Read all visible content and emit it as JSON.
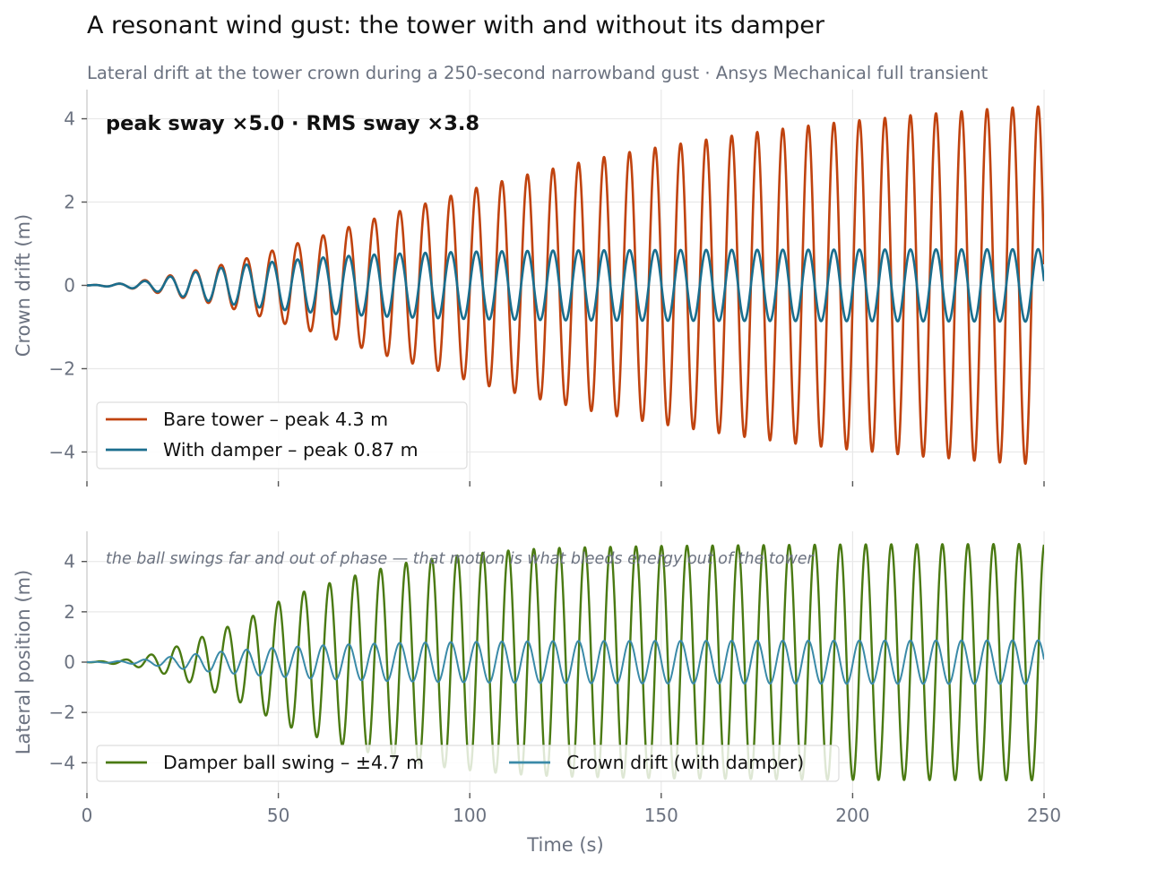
{
  "title": "A resonant wind gust: the tower with and without its damper",
  "subtitle": "Lateral drift at the tower crown during a 250-second narrowband gust  ·  Ansys Mechanical full transient",
  "chart_data": [
    {
      "type": "line",
      "ylabel": "Crown drift  (m)",
      "xlim": [
        0,
        250
      ],
      "ylim": [
        -4.7,
        4.7
      ],
      "x_ticks": [
        0,
        50,
        100,
        150,
        200,
        250
      ],
      "y_ticks": [
        -4,
        -2,
        0,
        2,
        4
      ],
      "grid": true,
      "legend_position": "lower-left",
      "annotation": "peak sway  ×5.0   ·   RMS sway  ×3.8",
      "oscillation_period_s": 6.67,
      "series": [
        {
          "name": "Bare tower  –  peak 4.3 m",
          "color": "#c0430f",
          "envelope": {
            "t": [
              0,
              10,
              16.7,
              25,
              33.3,
              41.7,
              50,
              58.3,
              66.7,
              75,
              83.3,
              91.7,
              100,
              108.3,
              116.7,
              125,
              133.3,
              141.7,
              150,
              158.3,
              166.7,
              175,
              183.3,
              191.7,
              200,
              208.3,
              216.7,
              225,
              233.3,
              241.7,
              250
            ],
            "amp": [
              0,
              0.05,
              0.15,
              0.3,
              0.45,
              0.65,
              0.88,
              1.1,
              1.35,
              1.6,
              1.83,
              2.05,
              2.3,
              2.5,
              2.7,
              2.87,
              3.05,
              3.2,
              3.33,
              3.45,
              3.57,
              3.68,
              3.78,
              3.87,
              3.95,
              4.02,
              4.1,
              4.15,
              4.22,
              4.27,
              4.3
            ]
          }
        },
        {
          "name": "With damper  –  peak 0.87 m",
          "color": "#1a6e8e",
          "envelope": {
            "t": [
              0,
              10,
              16.7,
              25,
              33.3,
              41.7,
              50,
              58.3,
              66.7,
              75,
              83.3,
              91.7,
              100,
              108.3,
              116.7,
              125,
              150,
              200,
              250
            ],
            "amp": [
              0,
              0.05,
              0.12,
              0.27,
              0.4,
              0.5,
              0.58,
              0.65,
              0.7,
              0.74,
              0.77,
              0.79,
              0.81,
              0.82,
              0.83,
              0.84,
              0.85,
              0.86,
              0.87
            ]
          }
        }
      ]
    },
    {
      "type": "line",
      "xlabel": "Time  (s)",
      "ylabel": "Lateral position  (m)",
      "xlim": [
        0,
        250
      ],
      "ylim": [
        -5.2,
        5.2
      ],
      "x_ticks": [
        0,
        50,
        100,
        150,
        200,
        250
      ],
      "y_ticks": [
        -4,
        -2,
        0,
        2,
        4
      ],
      "grid": true,
      "legend_position": "lower-left",
      "annotation": "the ball swings far and out of phase — that motion is what bleeds energy out of the tower",
      "oscillation_period_s": 6.67,
      "series": [
        {
          "name": "Damper ball swing  –  ±4.7 m",
          "color": "#4a7a12",
          "phase_lag_deg": 90,
          "envelope": {
            "t": [
              0,
              10,
              16.7,
              25,
              33.3,
              41.7,
              50,
              58.3,
              66.7,
              75,
              83.3,
              91.7,
              100,
              108.3,
              116.7,
              125,
              150,
              200,
              250
            ],
            "amp": [
              0,
              0.1,
              0.3,
              0.7,
              1.2,
              1.7,
              2.4,
              2.9,
              3.3,
              3.65,
              3.95,
              4.15,
              4.3,
              4.42,
              4.5,
              4.55,
              4.62,
              4.68,
              4.7
            ]
          }
        },
        {
          "name": "Crown drift (with damper)",
          "color": "#3a8aa8",
          "envelope": {
            "t": [
              0,
              10,
              16.7,
              25,
              33.3,
              41.7,
              50,
              58.3,
              66.7,
              75,
              83.3,
              91.7,
              100,
              108.3,
              116.7,
              125,
              150,
              200,
              250
            ],
            "amp": [
              0,
              0.05,
              0.12,
              0.27,
              0.4,
              0.5,
              0.58,
              0.65,
              0.7,
              0.74,
              0.77,
              0.79,
              0.81,
              0.82,
              0.83,
              0.84,
              0.85,
              0.86,
              0.87
            ]
          }
        }
      ]
    }
  ]
}
